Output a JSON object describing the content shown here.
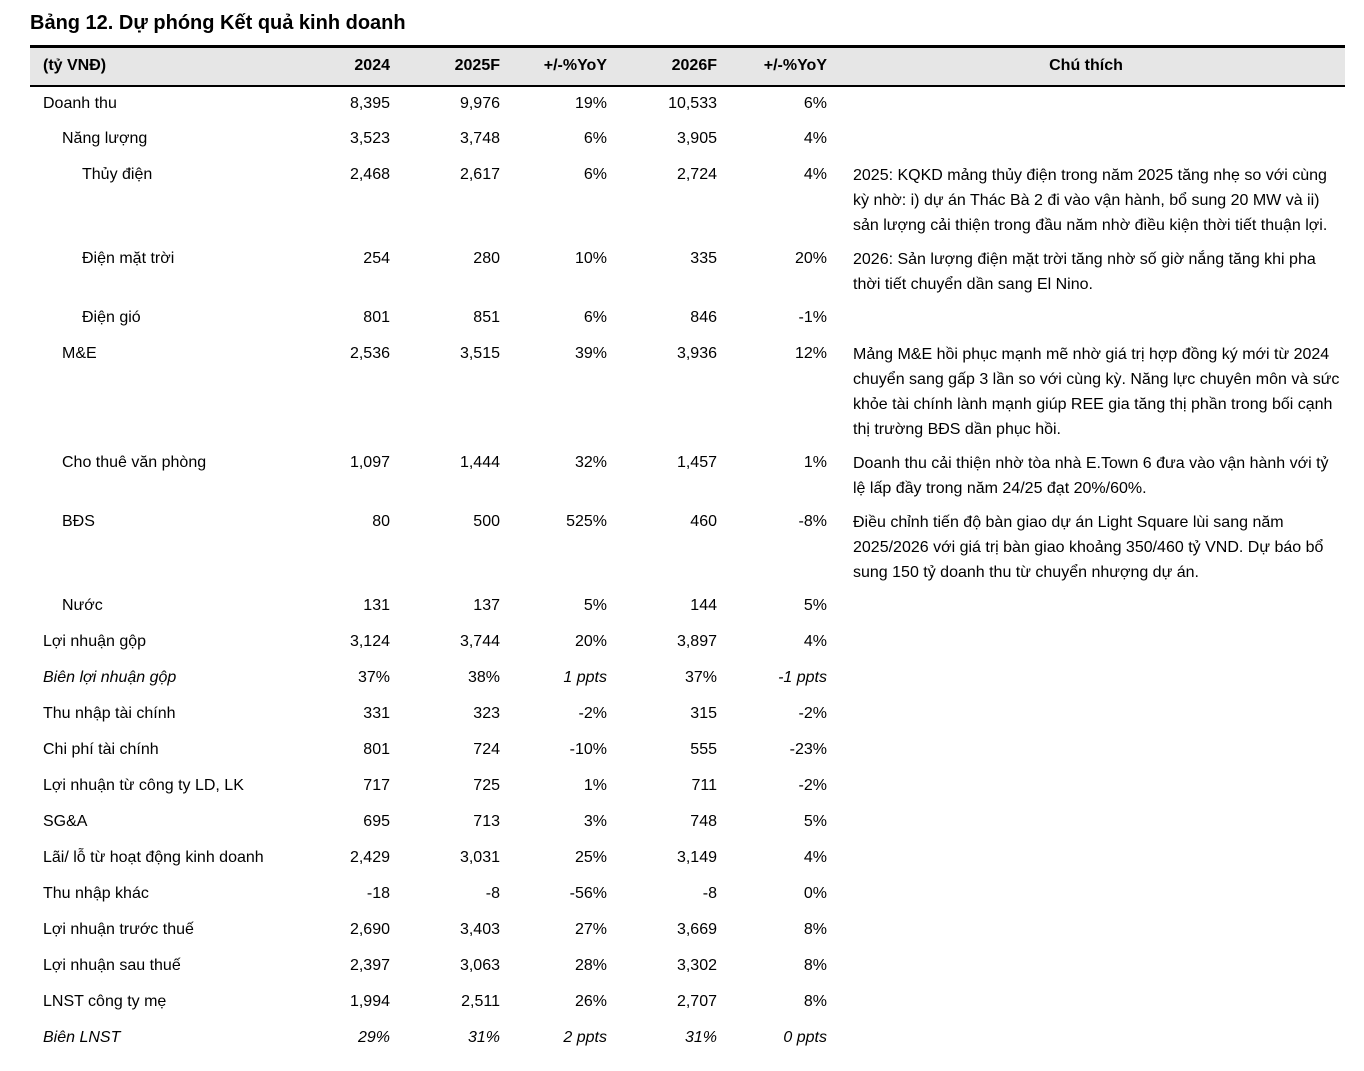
{
  "page": {
    "title": "Bảng 12. Dự phóng Kết quả kinh doanh"
  },
  "table": {
    "unit_label": "(tỷ VNĐ)",
    "columns": [
      "2024",
      "2025F",
      "+/-%YoY",
      "2026F",
      "+/-%YoY"
    ],
    "note_column": "Chú thích",
    "header_bg": "#e6e6e6",
    "border_color": "#000000",
    "rows": [
      {
        "label": "Doanh thu",
        "indent": 0,
        "cells": [
          "8,395",
          "9,976",
          "19%",
          "10,533",
          "6%"
        ],
        "note": ""
      },
      {
        "label": "Năng lượng",
        "indent": 1,
        "cells": [
          "3,523",
          "3,748",
          "6%",
          "3,905",
          "4%"
        ],
        "note": ""
      },
      {
        "label": "Thủy điện",
        "indent": 2,
        "cells": [
          "2,468",
          "2,617",
          "6%",
          "2,724",
          "4%"
        ],
        "note": "2025: KQKD mảng thủy điện trong năm 2025 tăng nhẹ so với cùng kỳ nhờ: i) dự án Thác Bà 2 đi vào vận hành, bổ sung 20 MW và ii) sản lượng cải thiện trong đầu năm nhờ điều kiện thời tiết thuận lợi."
      },
      {
        "label": "Điện mặt trời",
        "indent": 2,
        "cells": [
          "254",
          "280",
          "10%",
          "335",
          "20%"
        ],
        "note": "2026: Sản lượng điện mặt trời tăng nhờ số giờ nắng tăng khi pha thời tiết chuyển dần sang El Nino."
      },
      {
        "label": "Điện gió",
        "indent": 2,
        "cells": [
          "801",
          "851",
          "6%",
          "846",
          "-1%"
        ],
        "note": ""
      },
      {
        "label": "M&E",
        "indent": 1,
        "cells": [
          "2,536",
          "3,515",
          "39%",
          "3,936",
          "12%"
        ],
        "note": "Mảng M&E hồi phục mạnh mẽ nhờ giá trị hợp đồng ký mới từ 2024 chuyển sang gấp 3 lần so với cùng kỳ. Năng lực chuyên môn và sức khỏe tài chính lành mạnh giúp REE gia tăng thị phần trong bối cạnh thị trường BĐS dần phục hồi."
      },
      {
        "label": "Cho thuê văn phòng",
        "indent": 1,
        "cells": [
          "1,097",
          "1,444",
          "32%",
          "1,457",
          "1%"
        ],
        "note": "Doanh thu cải thiện nhờ tòa nhà E.Town 6 đưa vào vận hành với tỷ lệ lấp đầy trong năm 24/25 đạt 20%/60%."
      },
      {
        "label": "BĐS",
        "indent": 1,
        "cells": [
          "80",
          "500",
          "525%",
          "460",
          "-8%"
        ],
        "note": "Điều chỉnh tiến độ bàn giao dự án Light Square lùi sang năm 2025/2026 với giá trị bàn giao khoảng 350/460 tỷ VND. Dự báo bổ sung 150 tỷ doanh thu từ chuyển nhượng dự án."
      },
      {
        "label": "Nước",
        "indent": 1,
        "cells": [
          "131",
          "137",
          "5%",
          "144",
          "5%"
        ],
        "note": ""
      },
      {
        "label": "Lợi nhuận gộp",
        "indent": 0,
        "cells": [
          "3,124",
          "3,744",
          "20%",
          "3,897",
          "4%"
        ],
        "note": ""
      },
      {
        "label": "Biên lợi nhuận gộp",
        "indent": 0,
        "italic_label": true,
        "cells": [
          "37%",
          "38%",
          "1 ppts",
          "37%",
          "-1 ppts"
        ],
        "italic_cells": [
          false,
          false,
          true,
          false,
          true
        ],
        "note": ""
      },
      {
        "label": "Thu nhập tài chính",
        "indent": 0,
        "cells": [
          "331",
          "323",
          "-2%",
          "315",
          "-2%"
        ],
        "note": ""
      },
      {
        "label": "Chi phí tài chính",
        "indent": 0,
        "cells": [
          "801",
          "724",
          "-10%",
          "555",
          "-23%"
        ],
        "note": ""
      },
      {
        "label": "Lợi nhuận từ công ty LD, LK",
        "indent": 0,
        "cells": [
          "717",
          "725",
          "1%",
          "711",
          "-2%"
        ],
        "note": ""
      },
      {
        "label": "SG&A",
        "indent": 0,
        "cells": [
          "695",
          "713",
          "3%",
          "748",
          "5%"
        ],
        "note": ""
      },
      {
        "label": "Lãi/ lỗ từ hoạt động kinh doanh",
        "indent": 0,
        "cells": [
          "2,429",
          "3,031",
          "25%",
          "3,149",
          "4%"
        ],
        "note": ""
      },
      {
        "label": "Thu nhập khác",
        "indent": 0,
        "cells": [
          "-18",
          "-8",
          "-56%",
          "-8",
          "0%"
        ],
        "note": ""
      },
      {
        "label": "Lợi nhuận trước thuế",
        "indent": 0,
        "cells": [
          "2,690",
          "3,403",
          "27%",
          "3,669",
          "8%"
        ],
        "note": ""
      },
      {
        "label": "Lợi nhuận sau thuế",
        "indent": 0,
        "cells": [
          "2,397",
          "3,063",
          "28%",
          "3,302",
          "8%"
        ],
        "note": ""
      },
      {
        "label": "LNST công ty mẹ",
        "indent": 0,
        "cells": [
          "1,994",
          "2,511",
          "26%",
          "2,707",
          "8%"
        ],
        "note": ""
      },
      {
        "label": "Biên LNST",
        "indent": 0,
        "italic_label": true,
        "cells": [
          "29%",
          "31%",
          "2 ppts",
          "31%",
          "0 ppts"
        ],
        "italic_cells": [
          true,
          true,
          true,
          true,
          true
        ],
        "note": ""
      }
    ]
  }
}
